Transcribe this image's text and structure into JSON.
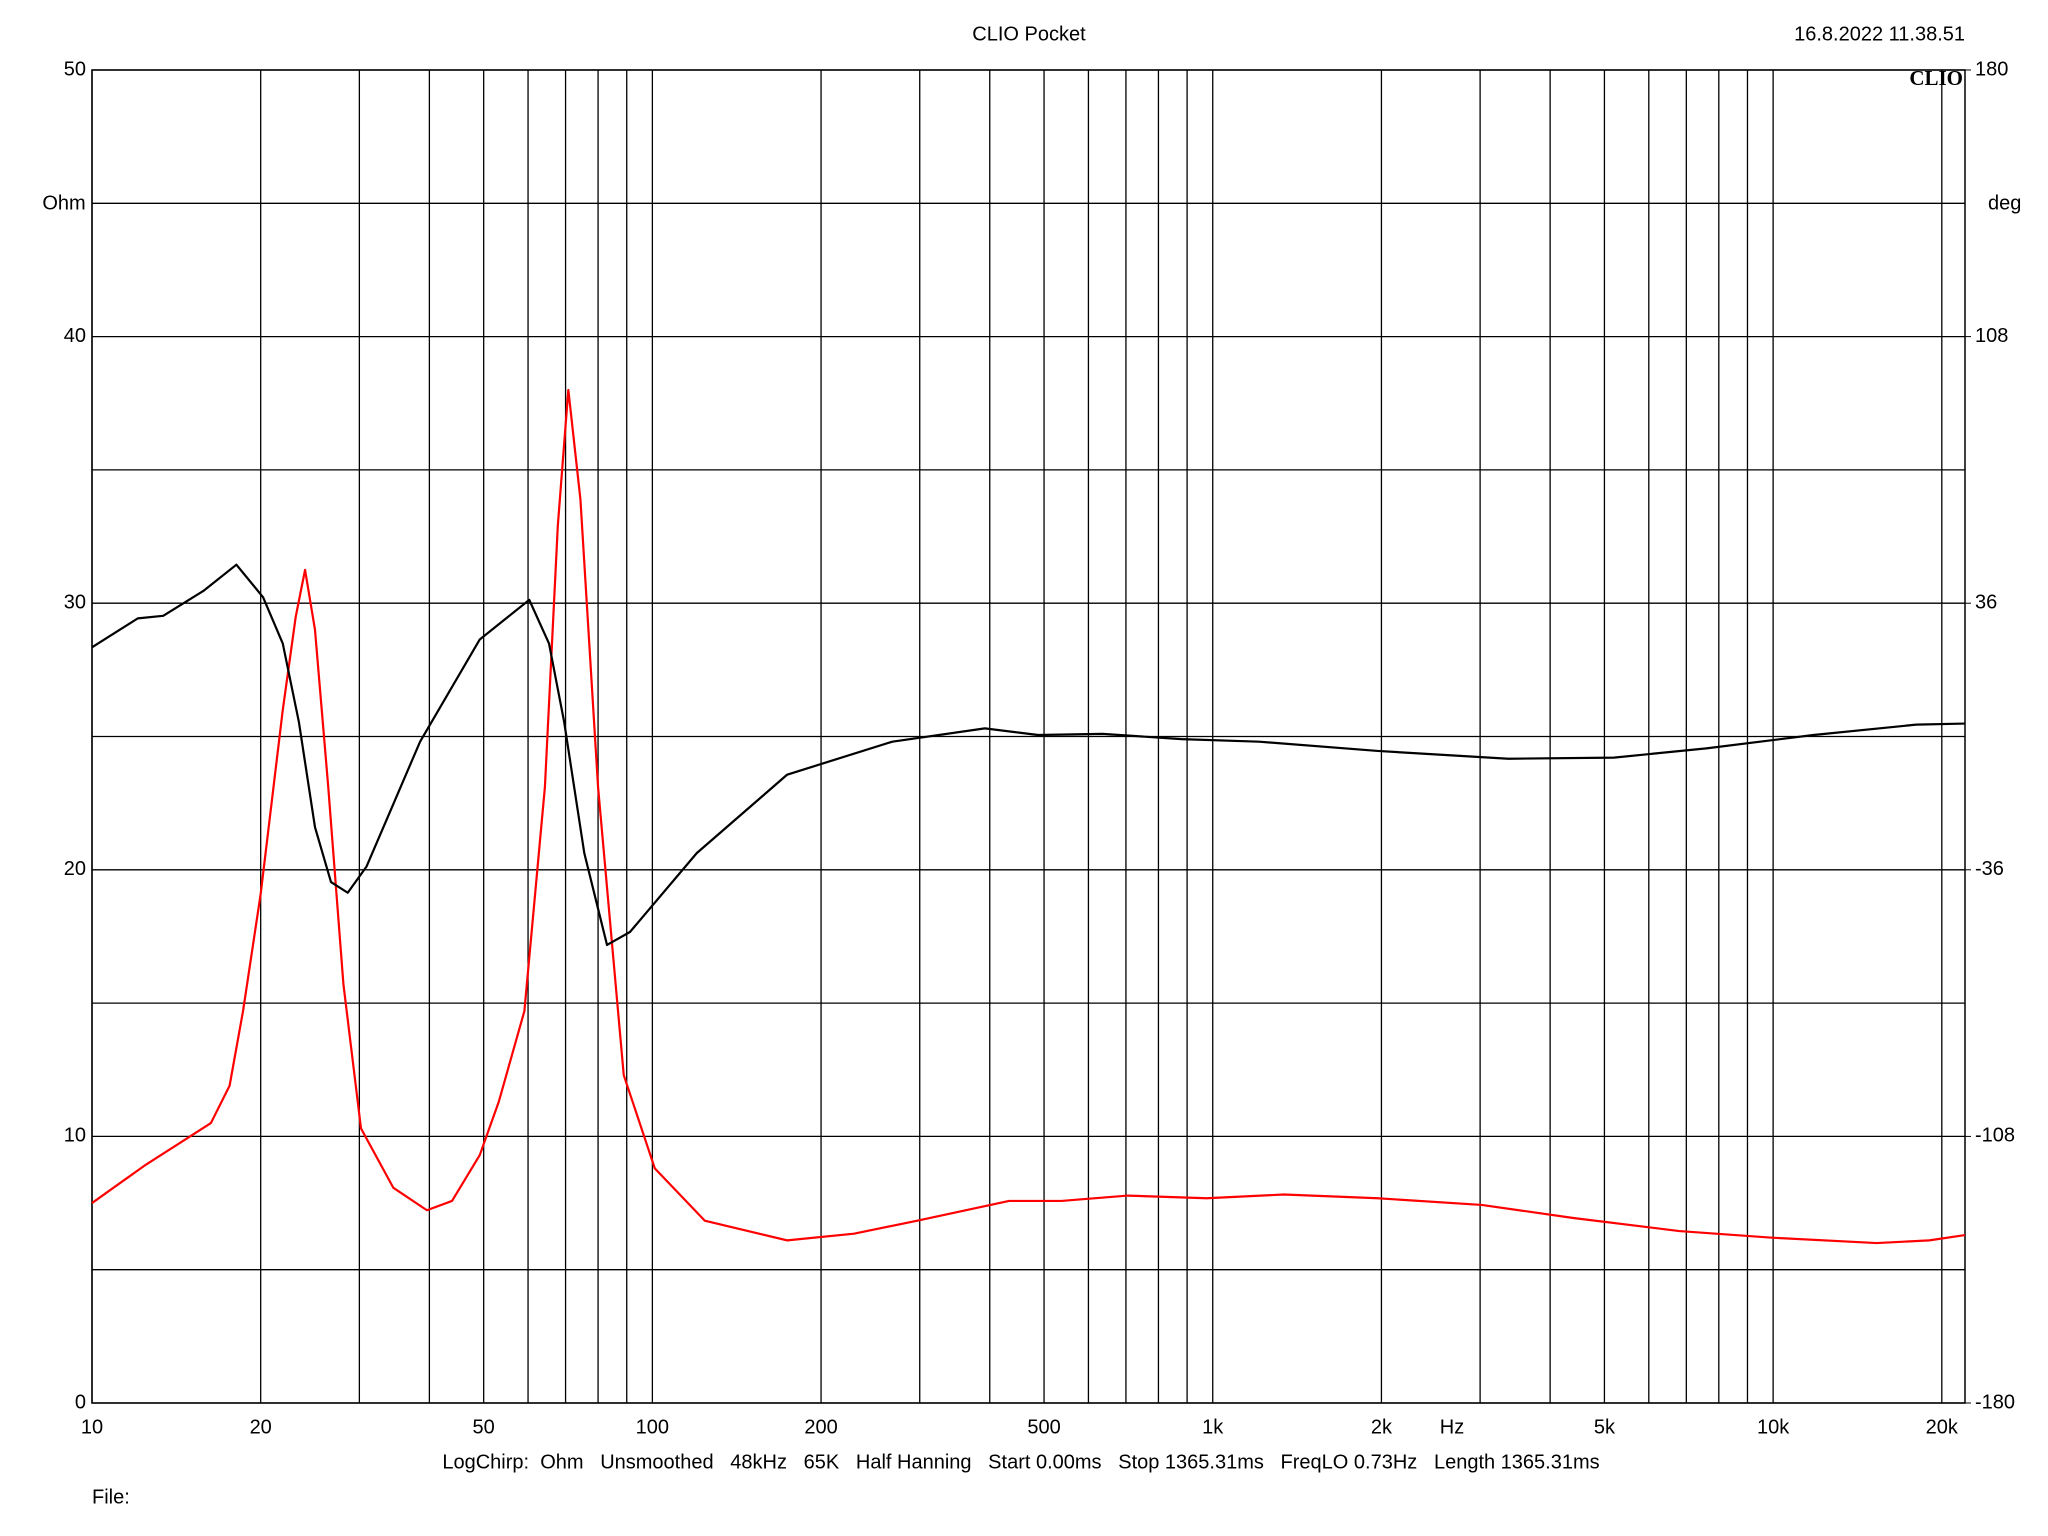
{
  "chart_data": {
    "type": "line",
    "title": "CLIO Pocket",
    "timestamp": "16.8.2022 11.38.51",
    "logo": "CLIO",
    "ylabel": "Ohm",
    "y2label": "deg",
    "xlabel": "Hz",
    "footer": "LogChirp:  Ohm   Unsmoothed   48kHz   65K   Half Hanning   Start 0.00ms   Stop 1365.31ms   FreqLO 0.73Hz   Length 1365.31ms",
    "file_label": "File:",
    "xscale": "log",
    "grid": true,
    "xlim": [
      10,
      22000
    ],
    "xticks": [
      10,
      20,
      50,
      100,
      200,
      500,
      {
        "value": 1000,
        "label": "1k"
      },
      {
        "value": 2000,
        "label": "2k"
      },
      {
        "value": 5000,
        "label": "5k"
      },
      {
        "value": 10000,
        "label": "10k"
      },
      {
        "value": 20000,
        "label": "20k"
      }
    ],
    "xminor": [
      30,
      40,
      60,
      70,
      80,
      90,
      300,
      400,
      600,
      700,
      800,
      900,
      3000,
      4000,
      6000,
      7000,
      8000,
      9000
    ],
    "ylim": [
      0,
      50
    ],
    "yticks": [
      0,
      10,
      20,
      30,
      40,
      50
    ],
    "yminor": [
      5,
      15,
      25,
      35,
      45
    ],
    "y2lim": [
      -180,
      180
    ],
    "y2ticks": [
      180,
      108,
      36,
      -36,
      -108,
      -180
    ],
    "series": [
      {
        "color": "#ff0000",
        "x": [
          10,
          12.4,
          16.3,
          17.6,
          18.6,
          20,
          21.9,
          23.1,
          24,
          25,
          26.4,
          28.1,
          30.2,
          34.5,
          39.6,
          43.9,
          49.2,
          53.2,
          59.1,
          64.3,
          67.8,
          70.8,
          74.4,
          80,
          88.9,
          101,
          124,
          174,
          229,
          297,
          433,
          537,
          706,
          975,
          1340,
          1970,
          3020,
          4400,
          6800,
          9950,
          15300,
          19000,
          22000
        ],
        "values": [
          7.5,
          8.9,
          10.5,
          11.9,
          14.7,
          19.1,
          26.0,
          29.5,
          31.25,
          29.0,
          23.1,
          15.7,
          10.3,
          8.07,
          7.23,
          7.58,
          9.3,
          11.3,
          14.7,
          23.1,
          32.9,
          38.0,
          33.9,
          23.1,
          12.3,
          8.8,
          6.84,
          6.1,
          6.35,
          6.84,
          7.58,
          7.58,
          7.78,
          7.68,
          7.82,
          7.68,
          7.43,
          6.94,
          6.45,
          6.2,
          6.0,
          6.1,
          6.3
        ]
      },
      {
        "color": "#000000",
        "axis": "y2",
        "x": [
          10,
          12.07,
          13.4,
          15.8,
          18.1,
          20.2,
          21.9,
          23.4,
          25,
          26.7,
          28.6,
          30.9,
          38.5,
          49.2,
          60.3,
          65.4,
          69.6,
          75.6,
          83,
          91.2,
          120,
          174,
          268,
          392,
          488,
          636,
          879,
          1210,
          1970,
          3370,
          5200,
          7600,
          11800,
          18000,
          22000
        ],
        "values": [
          24.1,
          31.9,
          32.6,
          39.3,
          46.4,
          37.6,
          25.1,
          3.9,
          -24.5,
          -39.3,
          -42.2,
          -35.1,
          -1.4,
          26.2,
          36.9,
          25.1,
          3.9,
          -31.5,
          -56.3,
          -52.8,
          -31.5,
          -10.3,
          -1.4,
          2.2,
          0.4,
          0.7,
          -0.7,
          -1.4,
          -3.9,
          -6.0,
          -5.7,
          -3.2,
          0.4,
          3.2,
          3.5
        ]
      }
    ]
  }
}
